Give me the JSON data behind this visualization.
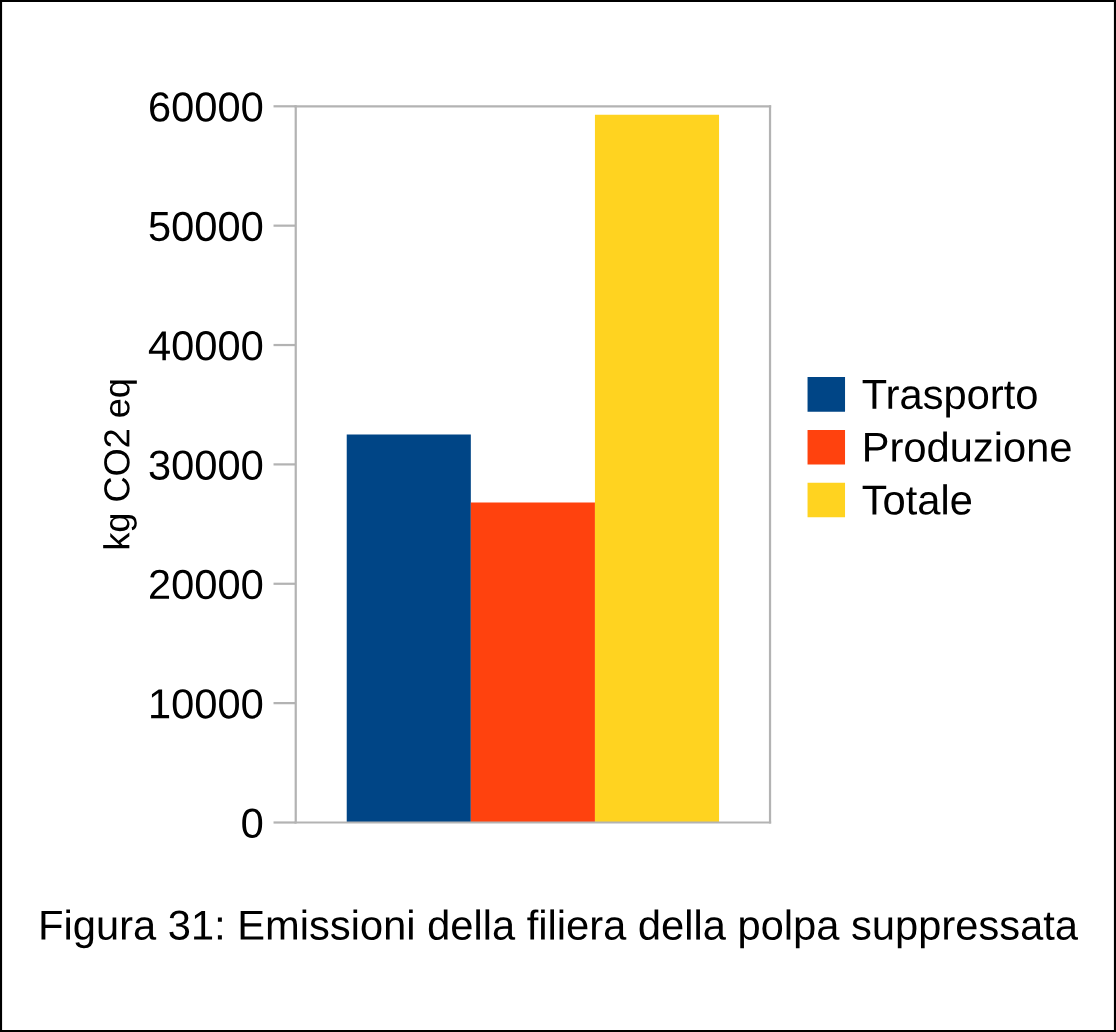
{
  "chart_data": {
    "type": "bar",
    "ylabel": "kg CO2 eq",
    "categories": [
      null
    ],
    "series": [
      {
        "name": "Trasporto",
        "color": "#004586",
        "values": [
          32500
        ]
      },
      {
        "name": "Produzione",
        "color": "#ff420e",
        "values": [
          26800
        ]
      },
      {
        "name": "Totale",
        "color": "#ffd320",
        "values": [
          59300
        ]
      }
    ],
    "ylim": [
      0,
      60000
    ],
    "yticks": [
      0,
      10000,
      20000,
      30000,
      40000,
      50000,
      60000
    ],
    "grid": false,
    "legend": "right",
    "annotations": [
      "Figura 31: Emissioni della filiera della polpa suppressata"
    ]
  }
}
